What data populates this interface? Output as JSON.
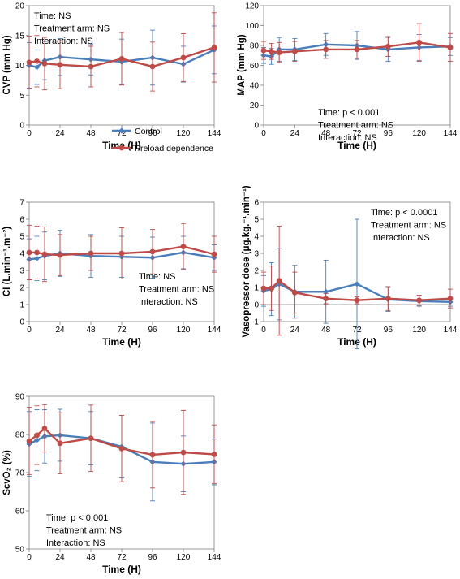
{
  "colors": {
    "control": "#4a7ebb",
    "preload": "#be4b48",
    "axis": "#808080",
    "grid": "#d9d9d9"
  },
  "legend": [
    {
      "name": "Control",
      "color": "#4a7ebb"
    },
    {
      "name": "Preload dependence",
      "color": "#be4b48"
    }
  ],
  "chart_data": [
    {
      "id": "cvp",
      "type": "line",
      "ylabel": "CVP (mm Hg)",
      "xlabel": "Time (H)",
      "xlim": [
        0,
        144
      ],
      "xticks": [
        0,
        24,
        48,
        72,
        96,
        120,
        144
      ],
      "ylim": [
        0,
        20
      ],
      "yticks": [
        0,
        5,
        10,
        15,
        20
      ],
      "annotations": [
        "Time: NS",
        "Treatment arm: NS",
        "Interaction: NS"
      ],
      "series": [
        {
          "name": "Control",
          "x": [
            0,
            6,
            12,
            24,
            48,
            72,
            96,
            120,
            144
          ],
          "y": [
            10.0,
            9.7,
            10.8,
            11.4,
            11.0,
            10.6,
            11.3,
            10.2,
            12.6
          ],
          "err": [
            3.8,
            2.9,
            3.2,
            3.1,
            2.6,
            3.8,
            4.6,
            3.0,
            4.0
          ]
        },
        {
          "name": "Preload dependence",
          "x": [
            0,
            6,
            12,
            24,
            48,
            72,
            96,
            120,
            144
          ],
          "y": [
            10.5,
            10.7,
            10.3,
            10.1,
            9.8,
            11.1,
            9.8,
            11.3,
            13.0
          ],
          "err": [
            4.4,
            4.3,
            4.4,
            4.0,
            3.4,
            4.4,
            4.1,
            4.0,
            5.8
          ]
        }
      ]
    },
    {
      "id": "map",
      "type": "line",
      "ylabel": "MAP (mm Hg)",
      "xlabel": "Time (H)",
      "xlim": [
        0,
        144
      ],
      "xticks": [
        0,
        24,
        48,
        72,
        96,
        120,
        144
      ],
      "ylim": [
        0,
        120
      ],
      "yticks": [
        0,
        20,
        40,
        60,
        80,
        100,
        120
      ],
      "annotations": [
        "Time: p < 0.001",
        "Treatment arm: NS",
        "Interaction: NS"
      ],
      "series": [
        {
          "name": "Control",
          "x": [
            0,
            6,
            12,
            24,
            48,
            72,
            96,
            120,
            144
          ],
          "y": [
            70,
            69,
            76,
            76,
            81,
            80,
            76,
            78,
            79
          ],
          "err": [
            8,
            8,
            12,
            11,
            11,
            14,
            12,
            13,
            9
          ]
        },
        {
          "name": "Preload dependence",
          "x": [
            0,
            6,
            12,
            24,
            48,
            72,
            96,
            120,
            144
          ],
          "y": [
            75,
            74,
            73,
            74,
            76,
            76,
            79,
            83,
            78
          ],
          "err": [
            9,
            8,
            10,
            10,
            9,
            9,
            10,
            19,
            14
          ]
        }
      ]
    },
    {
      "id": "ci",
      "type": "line",
      "ylabel": "CI (L.min⁻¹.m⁻²)",
      "xlabel": "Time (H)",
      "xlim": [
        0,
        144
      ],
      "xticks": [
        0,
        24,
        48,
        72,
        96,
        120,
        144
      ],
      "ylim": [
        0,
        7
      ],
      "yticks": [
        0,
        1,
        2,
        3,
        4,
        5,
        6,
        7
      ],
      "annotations": [
        "Time: NS",
        "Treatment arm: NS",
        "Interaction: NS"
      ],
      "series": [
        {
          "name": "Control",
          "x": [
            0,
            6,
            12,
            24,
            48,
            72,
            96,
            120,
            144
          ],
          "y": [
            3.65,
            3.7,
            3.85,
            4.0,
            3.85,
            3.8,
            3.75,
            4.05,
            3.75
          ],
          "err": [
            1.2,
            1.3,
            1.4,
            1.35,
            1.25,
            1.2,
            1.2,
            0.95,
            0.75
          ]
        },
        {
          "name": "Preload dependence",
          "x": [
            0,
            6,
            12,
            24,
            48,
            72,
            96,
            120,
            144
          ],
          "y": [
            4.05,
            4.05,
            3.95,
            3.9,
            4.0,
            4.0,
            4.1,
            4.4,
            3.95
          ],
          "err": [
            1.6,
            1.55,
            1.6,
            1.2,
            1.0,
            1.5,
            1.3,
            1.35,
            1.05
          ]
        }
      ]
    },
    {
      "id": "vaso",
      "type": "line",
      "ylabel": "Vasopressor dose (μg.kg.⁻¹.min⁻¹)",
      "xlabel": "Time (H)",
      "xlim": [
        0,
        144
      ],
      "xticks": [
        0,
        24,
        48,
        72,
        96,
        120,
        144
      ],
      "ylim": [
        -1,
        6
      ],
      "yticks": [
        -1,
        0,
        1,
        2,
        3,
        4,
        5,
        6
      ],
      "annotations": [
        "Time: p < 0.0001",
        "Treatment arm: NS",
        "Interaction: NS"
      ],
      "series": [
        {
          "name": "Control",
          "x": [
            0,
            6,
            12,
            24,
            48,
            72,
            96,
            120,
            144
          ],
          "y": [
            0.8,
            0.9,
            1.2,
            0.75,
            0.75,
            1.2,
            0.3,
            0.2,
            0.15
          ],
          "err": [
            0.9,
            1.55,
            2.1,
            1.55,
            1.85,
            3.8,
            0.7,
            0.3,
            0.25
          ]
        },
        {
          "name": "Preload dependence",
          "x": [
            0,
            6,
            12,
            24,
            48,
            72,
            96,
            120,
            144
          ],
          "y": [
            0.95,
            0.95,
            1.4,
            0.7,
            0.35,
            0.25,
            0.35,
            0.25,
            0.35
          ],
          "err": [
            0.95,
            1.3,
            3.2,
            1.2,
            0.3,
            0.2,
            0.7,
            0.3,
            0.55
          ]
        }
      ]
    },
    {
      "id": "scvo2",
      "type": "line",
      "ylabel": "ScvO₂ (%)",
      "xlabel": "Time (H)",
      "xlim": [
        0,
        144
      ],
      "xticks": [
        0,
        24,
        48,
        72,
        96,
        120,
        144
      ],
      "ylim": [
        50,
        90
      ],
      "yticks": [
        50,
        60,
        70,
        80,
        90
      ],
      "annotations": [
        "Time: p < 0.001",
        "Treatment arm: NS",
        "Interaction: NS"
      ],
      "series": [
        {
          "name": "Control",
          "x": [
            0,
            6,
            12,
            24,
            48,
            72,
            96,
            120,
            144
          ],
          "y": [
            77.5,
            78.5,
            79.5,
            79.8,
            79.0,
            76.8,
            72.8,
            72.3,
            72.8
          ],
          "err": [
            8.5,
            8.0,
            7.0,
            6.8,
            7.0,
            8.2,
            10.2,
            7.3,
            6.0
          ]
        },
        {
          "name": "Preload dependence",
          "x": [
            0,
            6,
            12,
            24,
            48,
            72,
            96,
            120,
            144
          ],
          "y": [
            78.3,
            79.8,
            81.6,
            77.7,
            79.0,
            76.3,
            74.7,
            75.3,
            74.8
          ],
          "err": [
            8.8,
            7.7,
            6.2,
            8.0,
            8.7,
            8.7,
            8.7,
            11.0,
            7.7
          ]
        }
      ]
    }
  ]
}
